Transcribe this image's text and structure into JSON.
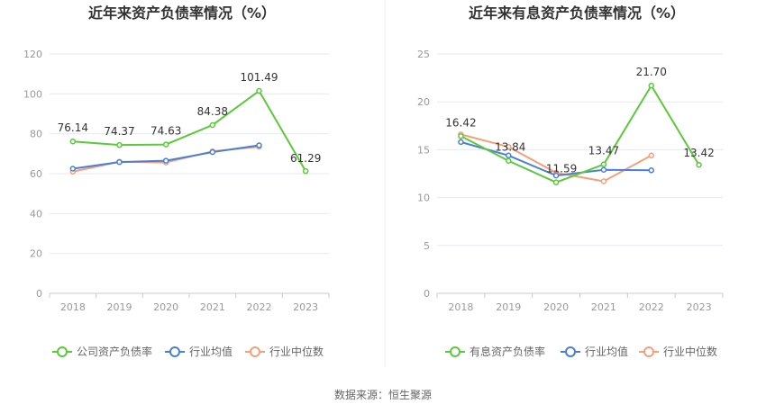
{
  "source_label": "数据来源：恒生聚源",
  "colors": {
    "company": "#5cc93a",
    "avg": "#4a7fd6",
    "median": "#f5a07a",
    "grid": "#e6e9f0",
    "axis": "#c7cbd3",
    "divider": "#eeeeee"
  },
  "chart_data": [
    {
      "type": "line",
      "title": "近年来资产负债率情况（%）",
      "categories": [
        "2018",
        "2019",
        "2020",
        "2021",
        "2022",
        "2023"
      ],
      "ylim": [
        0,
        120
      ],
      "yticks": [
        "0",
        "20",
        "40",
        "60",
        "80",
        "100",
        "120"
      ],
      "series": [
        {
          "name": "公司资产负债率",
          "values": [
            76.14,
            74.37,
            74.63,
            84.38,
            101.49,
            61.29
          ],
          "labels": [
            "76.14",
            "74.37",
            "74.63",
            "84.38",
            "101.49",
            "61.29"
          ]
        },
        {
          "name": "行业均值",
          "values": [
            62.5,
            65.8,
            66.5,
            70.8,
            74.2,
            null
          ]
        },
        {
          "name": "行业中位数",
          "values": [
            61.0,
            66.0,
            65.6,
            71.2,
            73.5,
            null
          ]
        }
      ]
    },
    {
      "type": "line",
      "title": "近年来有息资产负债率情况（%）",
      "categories": [
        "2018",
        "2019",
        "2020",
        "2021",
        "2022",
        "2023"
      ],
      "ylim": [
        0,
        25
      ],
      "yticks": [
        "0",
        "5",
        "10",
        "15",
        "20",
        "25"
      ],
      "series": [
        {
          "name": "有息资产负债率",
          "values": [
            16.42,
            13.84,
            11.59,
            13.47,
            21.7,
            13.42
          ],
          "labels": [
            "16.42",
            "13.84",
            "11.59",
            "13.47",
            "21.70",
            "13.42"
          ]
        },
        {
          "name": "行业均值",
          "values": [
            15.8,
            14.4,
            12.3,
            12.9,
            12.85,
            null
          ]
        },
        {
          "name": "行业中位数",
          "values": [
            16.6,
            15.3,
            12.6,
            11.7,
            14.4,
            null
          ]
        }
      ]
    }
  ]
}
